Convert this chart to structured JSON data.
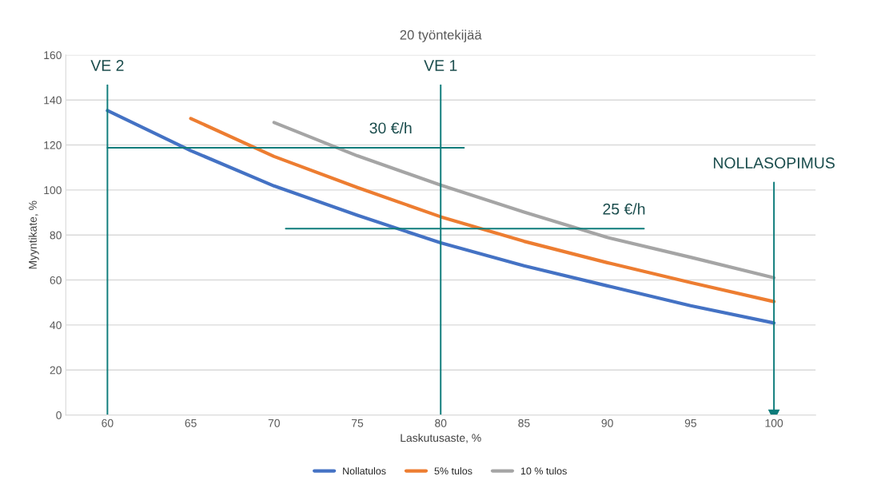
{
  "chart_data": {
    "type": "line",
    "title": "20 työntekijää",
    "xlabel": "Laskutusaste, %",
    "ylabel": "Myyntikate, %",
    "xlim": [
      57.5,
      102.5
    ],
    "xticks": [
      60,
      65,
      70,
      75,
      80,
      85,
      90,
      95,
      100
    ],
    "ylim": [
      0,
      160
    ],
    "yticks": [
      0,
      20,
      40,
      60,
      80,
      100,
      120,
      140,
      160
    ],
    "grid": "y",
    "legend": "bottom",
    "series": [
      {
        "name": "Nollatulos",
        "color": "#4472c4",
        "x": [
          60,
          65,
          70,
          75,
          80,
          85,
          90,
          95,
          100
        ],
        "values": [
          135.3,
          117.5,
          101.8,
          88.8,
          76.5,
          66.3,
          57.4,
          48.6,
          40.9
        ]
      },
      {
        "name": "5% tulos",
        "color": "#ed7d31",
        "x": [
          65,
          70,
          75,
          80,
          85,
          90,
          95,
          100
        ],
        "values": [
          131.8,
          114.9,
          101.1,
          88.1,
          77.2,
          67.7,
          58.9,
          50.4
        ]
      },
      {
        "name": "10 % tulos",
        "color": "#a5a5a5",
        "x": [
          70,
          75,
          80,
          85,
          90,
          95,
          100
        ],
        "values": [
          130,
          115.2,
          102.2,
          90.2,
          78.9,
          70.1,
          61
        ]
      },
      {
        "type": "line",
        "color": "#0e7c7b",
        "x": [
          60,
          81.4
        ],
        "values": [
          118.8,
          118.8
        ]
      },
      {
        "type": "line",
        "color": "#0e7c7b",
        "x": [
          70.7,
          92.2
        ],
        "values": [
          82.8,
          82.8
        ]
      },
      {
        "type": "line",
        "color": "#0e7c7b",
        "x": [
          60,
          60
        ],
        "values": [
          0,
          146.6
        ]
      },
      {
        "type": "line",
        "color": "#0e7c7b",
        "x": [
          80,
          80
        ],
        "values": [
          0,
          146.6
        ]
      },
      {
        "type": "line",
        "color": "#0e7c7b",
        "x": [
          100,
          100
        ],
        "values": [
          103.3,
          0
        ],
        "marker": "triangle"
      }
    ],
    "annotations": [
      {
        "text": "VE 2",
        "x": 60,
        "y": 146.6
      },
      {
        "text": "VE 1",
        "x": 80,
        "y": 146.6
      },
      {
        "text": "30 €/h",
        "x": 77,
        "y": 118.8
      },
      {
        "text": "25 €/h",
        "x": 91,
        "y": 82.8
      },
      {
        "text": "NOLLASOPIMUS",
        "x": 100,
        "y": 103.3
      }
    ]
  }
}
